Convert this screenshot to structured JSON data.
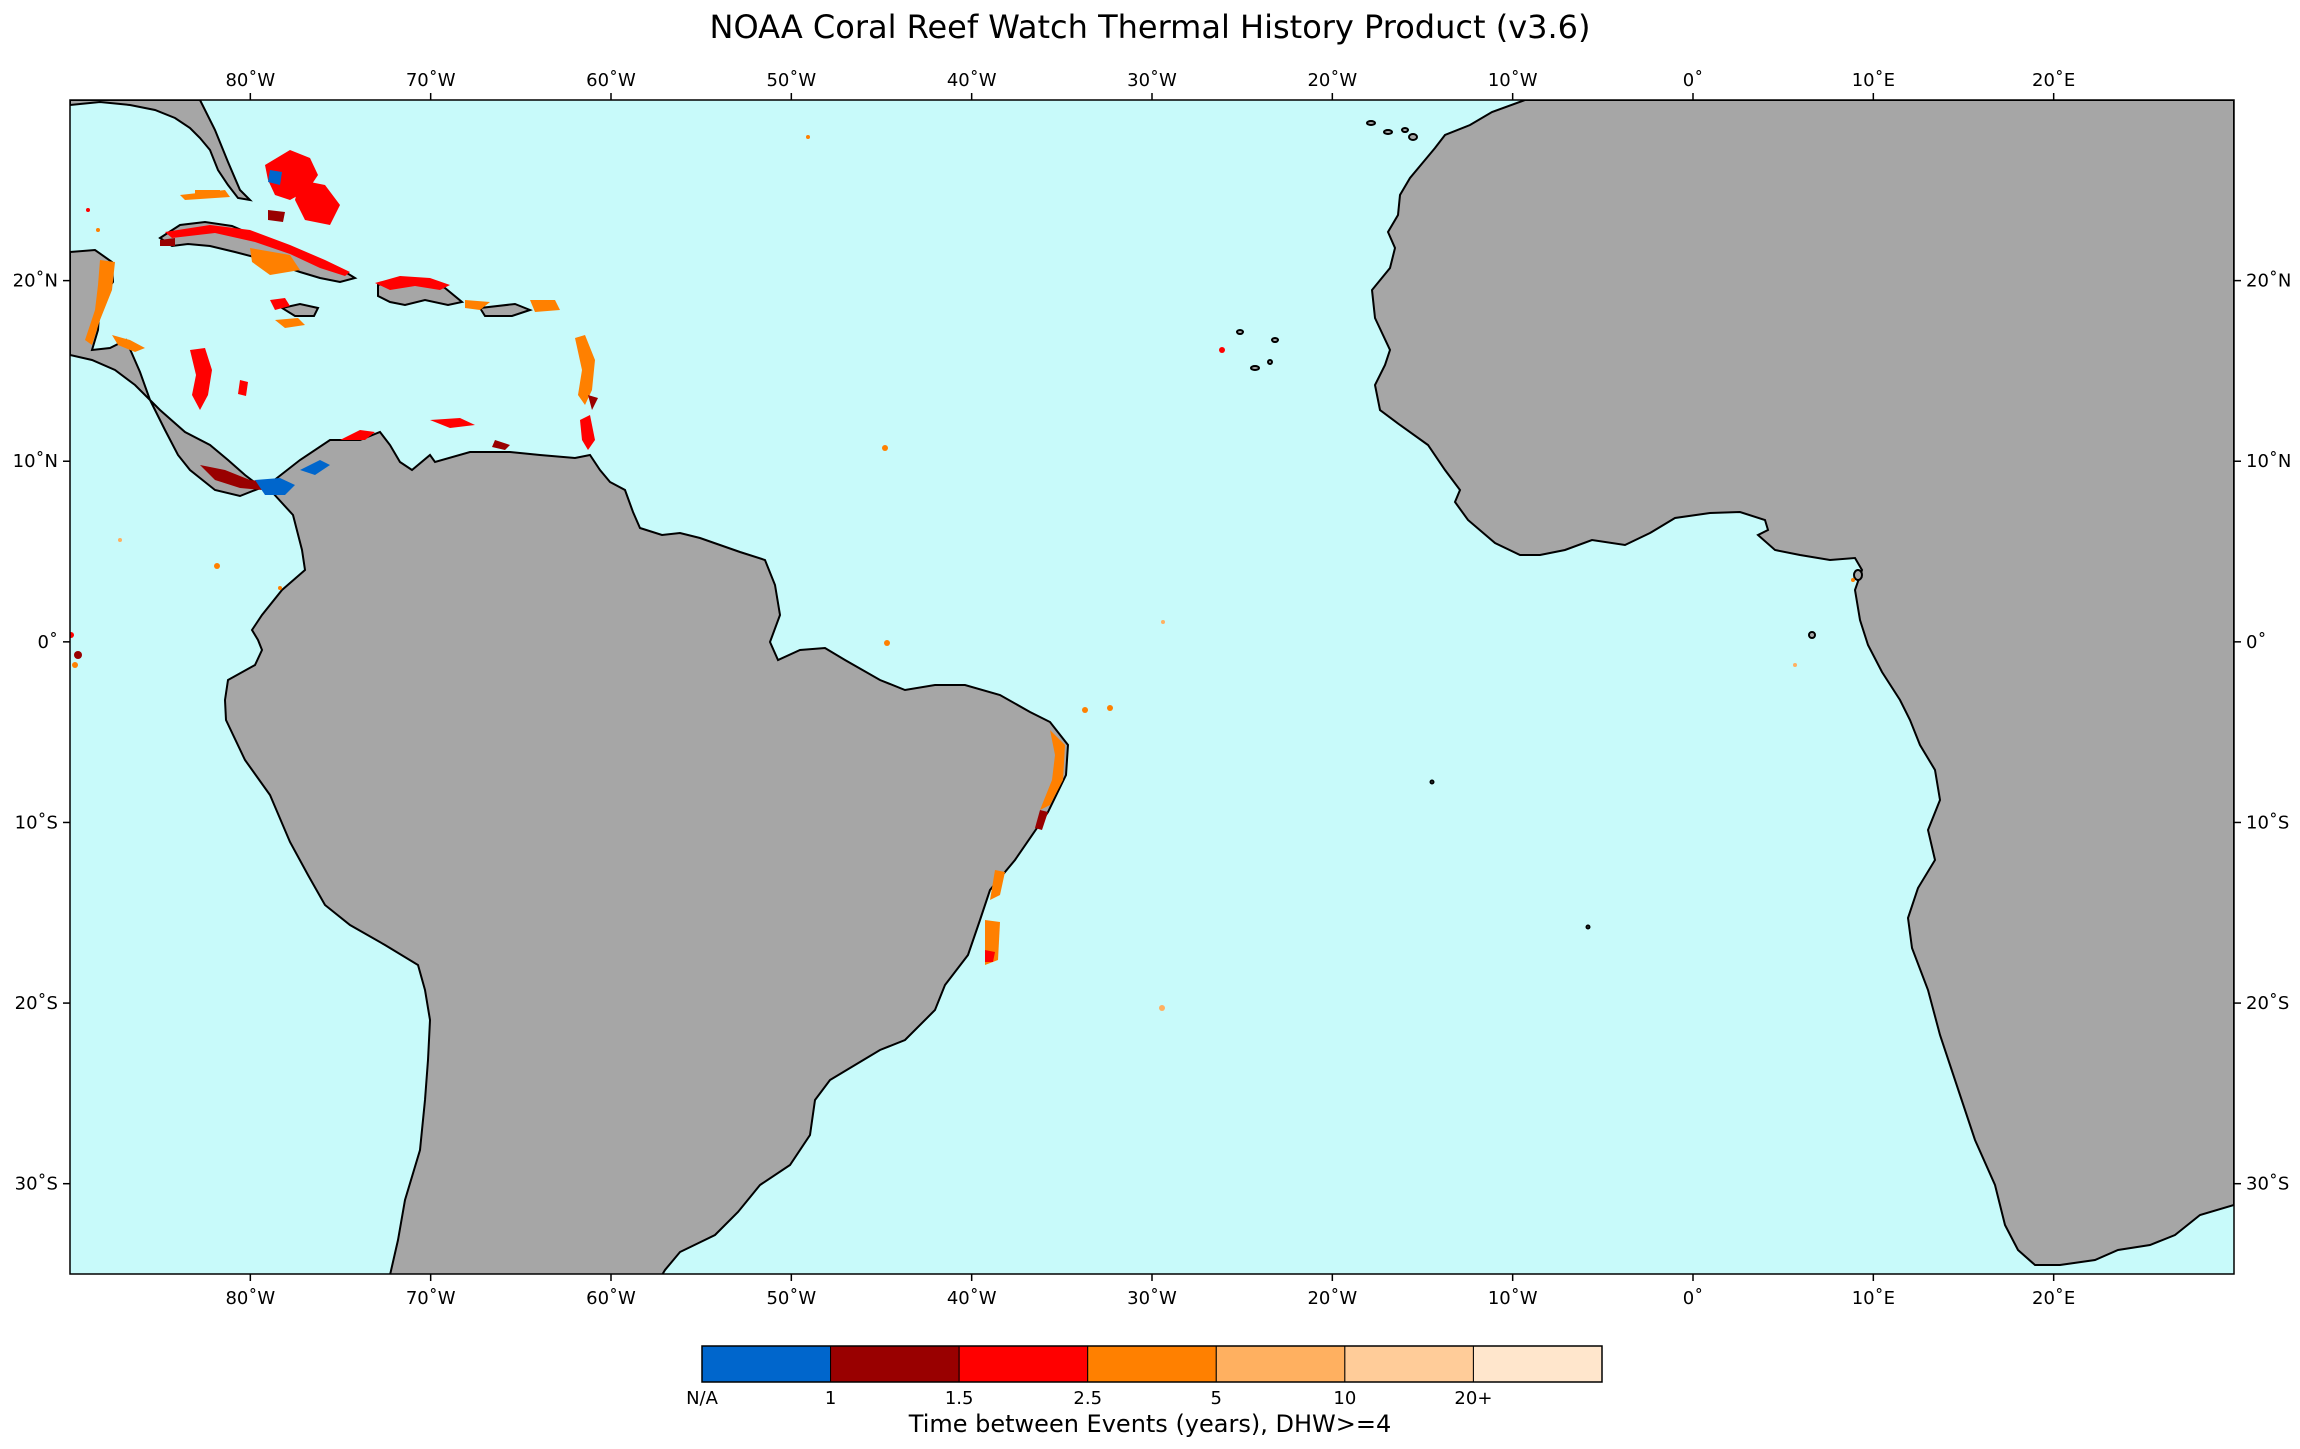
{
  "title": "NOAA Coral Reef Watch Thermal History Product (v3.6)",
  "map": {
    "extent": {
      "lon_min": -90,
      "lon_max": 30,
      "lat_min": -35,
      "lat_max": 30
    },
    "ocean_color": "#c8fafa",
    "land_color": "#a6a6a6",
    "coast_color": "#000000",
    "lon_ticks": [
      {
        "value": -80,
        "label": "80˚W"
      },
      {
        "value": -70,
        "label": "70˚W"
      },
      {
        "value": -60,
        "label": "60˚W"
      },
      {
        "value": -50,
        "label": "50˚W"
      },
      {
        "value": -40,
        "label": "40˚W"
      },
      {
        "value": -30,
        "label": "30˚W"
      },
      {
        "value": -20,
        "label": "20˚W"
      },
      {
        "value": -10,
        "label": "10˚W"
      },
      {
        "value": 0,
        "label": "0˚"
      },
      {
        "value": 10,
        "label": "10˚E"
      },
      {
        "value": 20,
        "label": "20˚E"
      }
    ],
    "lat_ticks": [
      {
        "value": 20,
        "label": "20˚N"
      },
      {
        "value": 10,
        "label": "10˚N"
      },
      {
        "value": 0,
        "label": "0˚"
      },
      {
        "value": -10,
        "label": "10˚S"
      },
      {
        "value": -20,
        "label": "20˚S"
      },
      {
        "value": -30,
        "label": "30˚S"
      }
    ]
  },
  "colorbar": {
    "title": "Time between Events (years), DHW>=4",
    "colors": [
      "#0066cc",
      "#990000",
      "#ff0000",
      "#ff8000",
      "#ffb060",
      "#ffcc99",
      "#ffe6cc"
    ],
    "labels": [
      "N/A",
      "1",
      "1.5",
      "2.5",
      "5",
      "10",
      "20+"
    ]
  }
}
